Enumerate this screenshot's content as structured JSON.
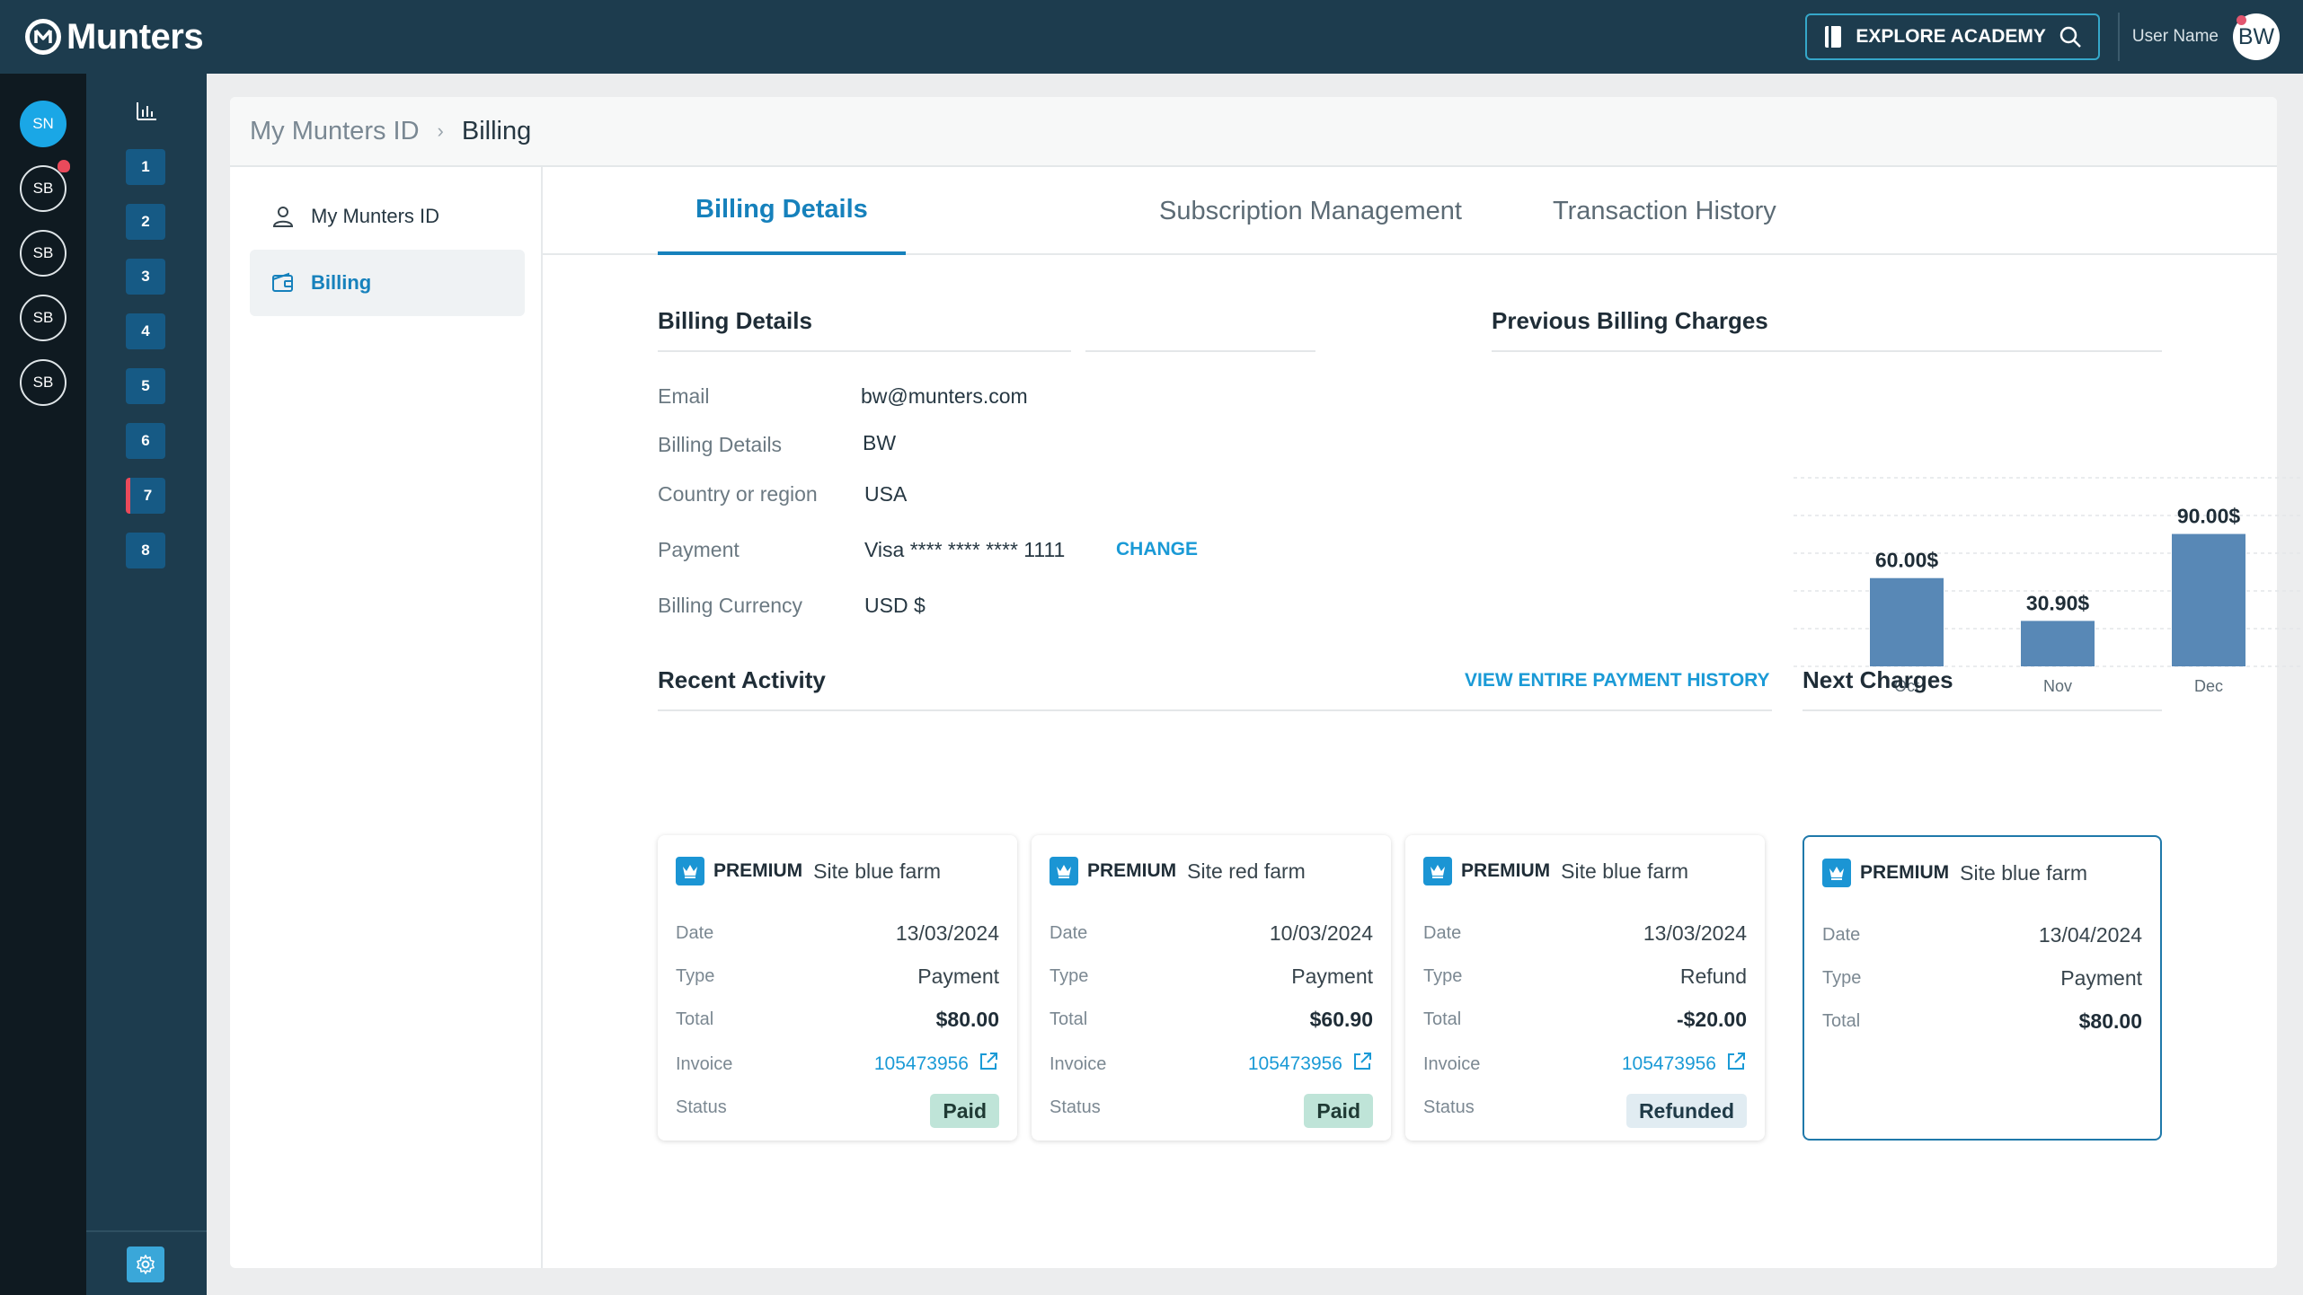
{
  "header": {
    "brand": "Munters",
    "academy_label": "EXPLORE ACADEMY",
    "user_name": "User Name",
    "user_initials": "BW"
  },
  "rail": {
    "avatars": [
      "SN",
      "SB",
      "SB",
      "SB",
      "SB"
    ],
    "numbers": [
      "1",
      "2",
      "3",
      "4",
      "5",
      "6",
      "7",
      "8"
    ]
  },
  "breadcrumb": {
    "root": "My Munters ID",
    "current": "Billing"
  },
  "side_nav": {
    "items": [
      {
        "label": "My Munters ID"
      },
      {
        "label": "Billing"
      }
    ]
  },
  "tabs": [
    "Billing Details",
    "Subscription Management",
    "Transaction History"
  ],
  "billing_details": {
    "title": "Billing Details",
    "rows": [
      {
        "label": "Email",
        "value": "bw@munters.com"
      },
      {
        "label": "Billing Details",
        "value": "BW"
      },
      {
        "label": "Country or region",
        "value": "USA"
      },
      {
        "label": "Payment",
        "value": "Visa **** **** **** 1111"
      },
      {
        "label": "Billing Currency",
        "value": "USD $"
      }
    ],
    "change_label": "CHANGE"
  },
  "previous_charges": {
    "title": "Previous Billing Charges"
  },
  "chart_data": {
    "type": "bar",
    "categories": [
      "Oct",
      "Nov",
      "Dec"
    ],
    "values": [
      60.0,
      30.9,
      90.0
    ],
    "labels": [
      "60.00$",
      "30.90$",
      "90.00$"
    ],
    "title": "Previous Billing Charges",
    "color": "#5888b6",
    "ylim": [
      0,
      100
    ],
    "grid": true
  },
  "recent_activity": {
    "title": "Recent Activity",
    "history_link": "VIEW ENTIRE PAYMENT HISTORY",
    "field_labels": {
      "date": "Date",
      "type": "Type",
      "total": "Total",
      "invoice": "Invoice",
      "status": "Status"
    },
    "cards": [
      {
        "tier": "PREMIUM",
        "site": "Site blue farm",
        "date": "13/03/2024",
        "type": "Payment",
        "total": "$80.00",
        "invoice": "105473956",
        "status": "Paid"
      },
      {
        "tier": "PREMIUM",
        "site": "Site red farm",
        "date": "10/03/2024",
        "type": "Payment",
        "total": "$60.90",
        "invoice": "105473956",
        "status": "Paid"
      },
      {
        "tier": "PREMIUM",
        "site": "Site blue farm",
        "date": "13/03/2024",
        "type": "Refund",
        "total": "-$20.00",
        "invoice": "105473956",
        "status": "Refunded"
      }
    ]
  },
  "next_charges": {
    "title": "Next Charges",
    "card": {
      "tier": "PREMIUM",
      "site": "Site blue farm",
      "date": "13/04/2024",
      "type": "Payment",
      "total": "$80.00"
    }
  }
}
